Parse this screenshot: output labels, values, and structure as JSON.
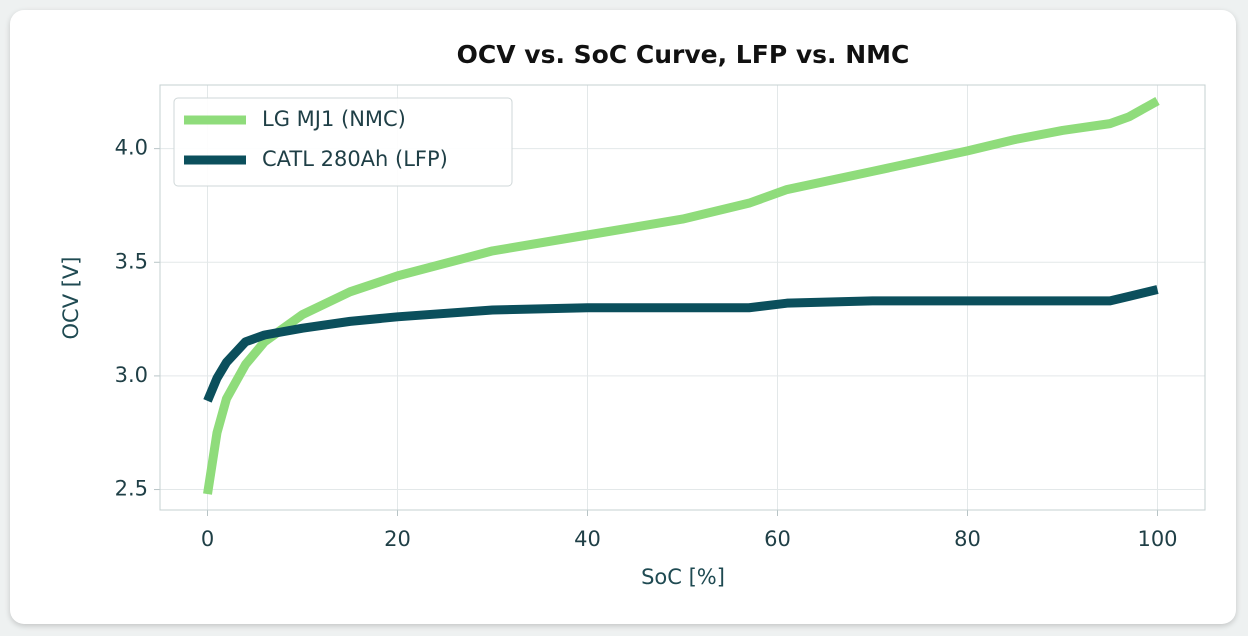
{
  "chart_data": {
    "type": "line",
    "title": "OCV vs. SoC Curve, LFP vs. NMC",
    "x_label": "SoC [%]",
    "y_label": "OCV [V]",
    "x": [
      0,
      1,
      2,
      4,
      6,
      10,
      15,
      20,
      30,
      40,
      50,
      57,
      61,
      70,
      80,
      85,
      90,
      95,
      97,
      100
    ],
    "series": [
      {
        "name": "LG MJ1 (NMC)",
        "color": "#8fdc7b",
        "values": [
          2.48,
          2.75,
          2.9,
          3.05,
          3.15,
          3.27,
          3.37,
          3.44,
          3.55,
          3.62,
          3.69,
          3.76,
          3.82,
          3.9,
          3.99,
          4.04,
          4.08,
          4.11,
          4.14,
          4.21
        ]
      },
      {
        "name": "CATL 280Ah (LFP)",
        "color": "#0b4f5c",
        "values": [
          2.89,
          2.99,
          3.06,
          3.15,
          3.18,
          3.21,
          3.24,
          3.26,
          3.29,
          3.3,
          3.3,
          3.3,
          3.32,
          3.33,
          3.33,
          3.33,
          3.33,
          3.33,
          3.35,
          3.38
        ]
      }
    ],
    "xlim": [
      -5,
      105
    ],
    "ylim": [
      2.41,
      4.28
    ],
    "xticks": [
      0,
      20,
      40,
      60,
      80,
      100
    ],
    "yticks": [
      2.5,
      {
        "value": 3,
        "label": "3.0"
      },
      3.5,
      {
        "value": 4,
        "label": "4.0"
      }
    ],
    "grid": true,
    "legend": "upper-left"
  }
}
